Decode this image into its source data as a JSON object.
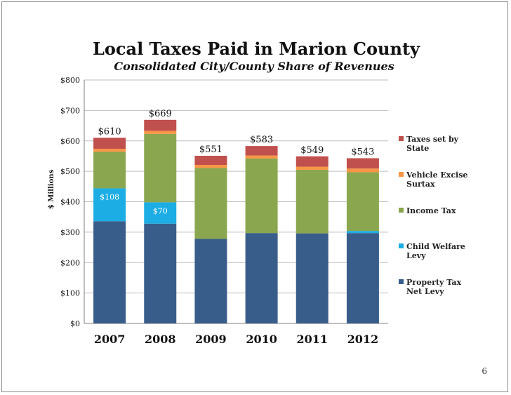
{
  "page_number": "6",
  "chart_data": {
    "type": "bar",
    "stacked": true,
    "title": "Local Taxes Paid in Marion County",
    "subtitle": "Consolidated City/County Share of Revenues",
    "ylabel": "$ Millions",
    "xlabel": "",
    "ylim": [
      0,
      800
    ],
    "yticks": [
      0,
      100,
      200,
      300,
      400,
      500,
      600,
      700,
      800
    ],
    "ytick_labels": [
      "$0",
      "$100",
      "$200",
      "$300",
      "$400",
      "$500",
      "$600",
      "$700",
      "$800"
    ],
    "grid": true,
    "legend_position": "right",
    "categories": [
      "2007",
      "2008",
      "2009",
      "2010",
      "2011",
      "2012"
    ],
    "series": [
      {
        "name": "Property Tax Net Levy",
        "color": "#385D8A",
        "values": [
          336,
          328,
          278,
          297,
          296,
          297
        ]
      },
      {
        "name": "Child Welfare Levy",
        "color": "#1CADE4",
        "values": [
          108,
          70,
          0,
          0,
          0,
          7
        ]
      },
      {
        "name": "Income Tax",
        "color": "#8AA64F",
        "values": [
          120,
          225,
          233,
          245,
          209,
          193
        ]
      },
      {
        "name": "Vehicle Excise Surtax",
        "color": "#F79646",
        "values": [
          10,
          10,
          10,
          10,
          10,
          12
        ]
      },
      {
        "name": "Taxes set by State",
        "color": "#C0504D",
        "values": [
          36,
          36,
          30,
          31,
          34,
          34
        ]
      }
    ],
    "totals": [
      "$610",
      "$669",
      "$551",
      "$583",
      "$549",
      "$543"
    ],
    "segment_labels": [
      {
        "category": "2007",
        "series": "Child Welfare Levy",
        "text": "$108"
      },
      {
        "category": "2008",
        "series": "Child Welfare Levy",
        "text": "$70"
      }
    ]
  }
}
